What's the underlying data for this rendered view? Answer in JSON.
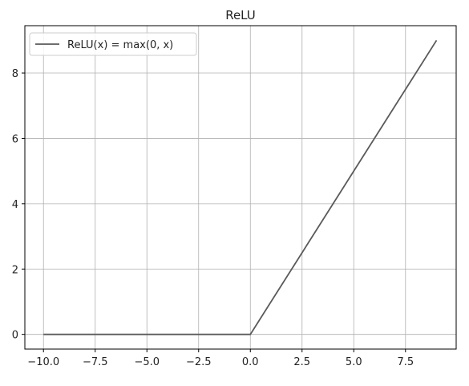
{
  "chart_data": {
    "type": "line",
    "title": "ReLU",
    "xlabel": "",
    "ylabel": "",
    "xlim": [
      -10.9,
      9.95
    ],
    "ylim": [
      -0.45,
      9.45
    ],
    "xticks": [
      -10.0,
      -7.5,
      -5.0,
      -2.5,
      0.0,
      2.5,
      5.0,
      7.5
    ],
    "xtick_labels": [
      "−10.0",
      "−7.5",
      "−5.0",
      "−2.5",
      "0.0",
      "2.5",
      "5.0",
      "7.5"
    ],
    "yticks": [
      0,
      2,
      4,
      6,
      8
    ],
    "ytick_labels": [
      "0",
      "2",
      "4",
      "6",
      "8"
    ],
    "grid": true,
    "legend_position": "top-left",
    "series": [
      {
        "name": "ReLU(x) = max(0, x)",
        "color": "#5a5a5a",
        "x": [
          -10,
          0,
          9
        ],
        "y": [
          0,
          0,
          9
        ]
      }
    ]
  }
}
